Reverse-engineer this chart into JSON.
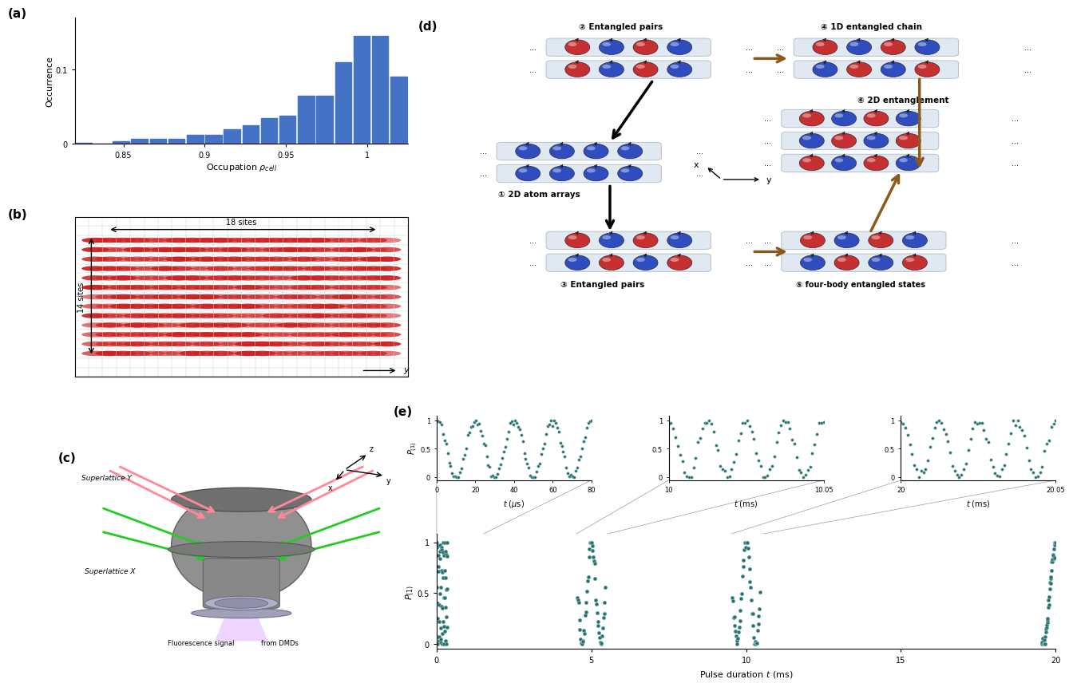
{
  "panel_a": {
    "bar_values": [
      0.001,
      0.0,
      0.003,
      0.007,
      0.007,
      0.007,
      0.012,
      0.012,
      0.02,
      0.025,
      0.035,
      0.038,
      0.065,
      0.065,
      0.11,
      0.145,
      0.145,
      0.09
    ],
    "bar_color": "#4472C4",
    "xlabel": "Occupation $\\rho_{cell}$",
    "ylabel": "Occurrence",
    "xticks": [
      0.85,
      0.9,
      0.95,
      1.0
    ],
    "xticklabels": [
      "0.85",
      "0.9",
      "0.95",
      "1"
    ],
    "yticks": [
      0,
      0.1
    ],
    "yticklabels": [
      "0",
      "0.1"
    ],
    "xlim": [
      0.82,
      1.025
    ],
    "ylim": [
      0,
      0.17
    ]
  },
  "red_atom": "#C42020",
  "blue_atom": "#2040BB",
  "tube_color": "#C8D8E8",
  "tube_edge": "#8899AA",
  "brown_arrow": "#8B5A1A",
  "marker_color": "#2F6E6E",
  "marker_edge_color": "#aadddd",
  "fig_bgcolor": "#ffffff"
}
